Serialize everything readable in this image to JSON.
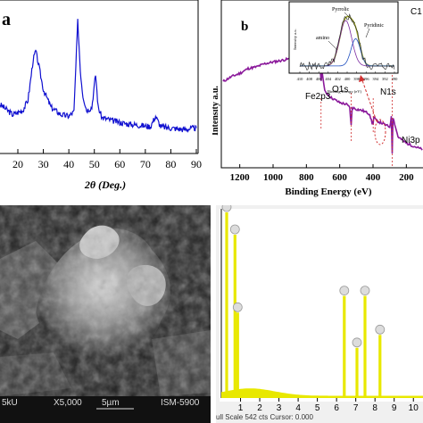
{
  "panel_a": {
    "label": "a",
    "xlabel": "2θ (Deg.)",
    "x_ticks": [
      "20",
      "30",
      "40",
      "50",
      "60",
      "70",
      "80",
      "90"
    ],
    "xlim": [
      13,
      90
    ],
    "line_color": "#1010d0"
  },
  "panel_b": {
    "label": "b",
    "xlabel": "Binding Energy (eV)",
    "ylabel": "Intensity a.u.",
    "x_ticks": [
      "1200",
      "1000",
      "800",
      "600",
      "400",
      "200"
    ],
    "peak_labels": [
      "C1",
      "Fe2p3",
      "O1s",
      "N1s",
      "Ni3p"
    ],
    "line_color": "#8b1a9b",
    "inset": {
      "ylabel": "Intensity a.u.",
      "xlabel": "Binding Energy (eV)",
      "x_ticks": [
        "410",
        "408",
        "406",
        "404",
        "402",
        "400",
        "398",
        "396",
        "394",
        "392",
        "390"
      ],
      "component_labels": [
        "Pyrrolic",
        "Pyridinic",
        "amino"
      ]
    }
  },
  "panel_c": {
    "scale_text": [
      "5kU",
      "X5,000",
      "5µm",
      "ISM-5900"
    ]
  },
  "panel_d": {
    "footer": "ull Scale 542 cts Cursor: 0.000",
    "x_ticks": [
      "1",
      "2",
      "3",
      "4",
      "5",
      "6",
      "7",
      "8",
      "9",
      "10"
    ],
    "bar_color": "#e8e800",
    "background": "#ffffff"
  },
  "chart_data": [
    {
      "type": "line",
      "title": "",
      "xlabel": "2θ (Deg.)",
      "ylabel": "",
      "xlim": [
        13,
        90
      ],
      "series": [
        {
          "x": [
            13,
            18,
            22,
            24,
            26,
            27,
            28,
            30,
            33,
            37,
            40,
            42,
            43.5,
            44.5,
            45.5,
            47,
            49,
            50.5,
            51.5,
            53,
            57,
            62,
            67,
            72,
            74,
            76,
            80,
            85,
            90
          ],
          "values": [
            32,
            25,
            28,
            35,
            62,
            68,
            60,
            42,
            30,
            25,
            24,
            27,
            88,
            55,
            38,
            28,
            30,
            52,
            30,
            23,
            21,
            19,
            18,
            17,
            24,
            17,
            16,
            15,
            16
          ]
        }
      ]
    },
    {
      "type": "line",
      "title": "",
      "xlabel": "Binding Energy (eV)",
      "ylabel": "Intensity a.u.",
      "xlim": [
        1300,
        100
      ],
      "series": [
        {
          "x": [
            1300,
            1250,
            1200,
            1150,
            1100,
            1050,
            1000,
            950,
            900,
            850,
            800,
            760,
            720,
            712,
            705,
            690,
            650,
            600,
            560,
            540,
            531,
            525,
            500,
            460,
            420,
            405,
            399,
            395,
            380,
            340,
            300,
            290,
            285,
            280,
            250,
            200,
            150,
            100
          ],
          "values": [
            52,
            55,
            57,
            60,
            61,
            63,
            64,
            65,
            66,
            67,
            66,
            65,
            62,
            53,
            58,
            46,
            42,
            39,
            38,
            36,
            25,
            36,
            35,
            34,
            32,
            26,
            27,
            30,
            28,
            26,
            24,
            30,
            8,
            30,
            18,
            14,
            12,
            10
          ]
        }
      ]
    },
    {
      "type": "bar",
      "title": "",
      "xlabel": "",
      "ylabel": "",
      "xlim": [
        0,
        10.5
      ],
      "series": [
        {
          "x": [
            0.28,
            0.71,
            0.85,
            6.4,
            7.06,
            7.48,
            8.26
          ],
          "values": [
            100,
            88,
            46,
            55,
            27,
            55,
            34
          ]
        }
      ]
    }
  ]
}
